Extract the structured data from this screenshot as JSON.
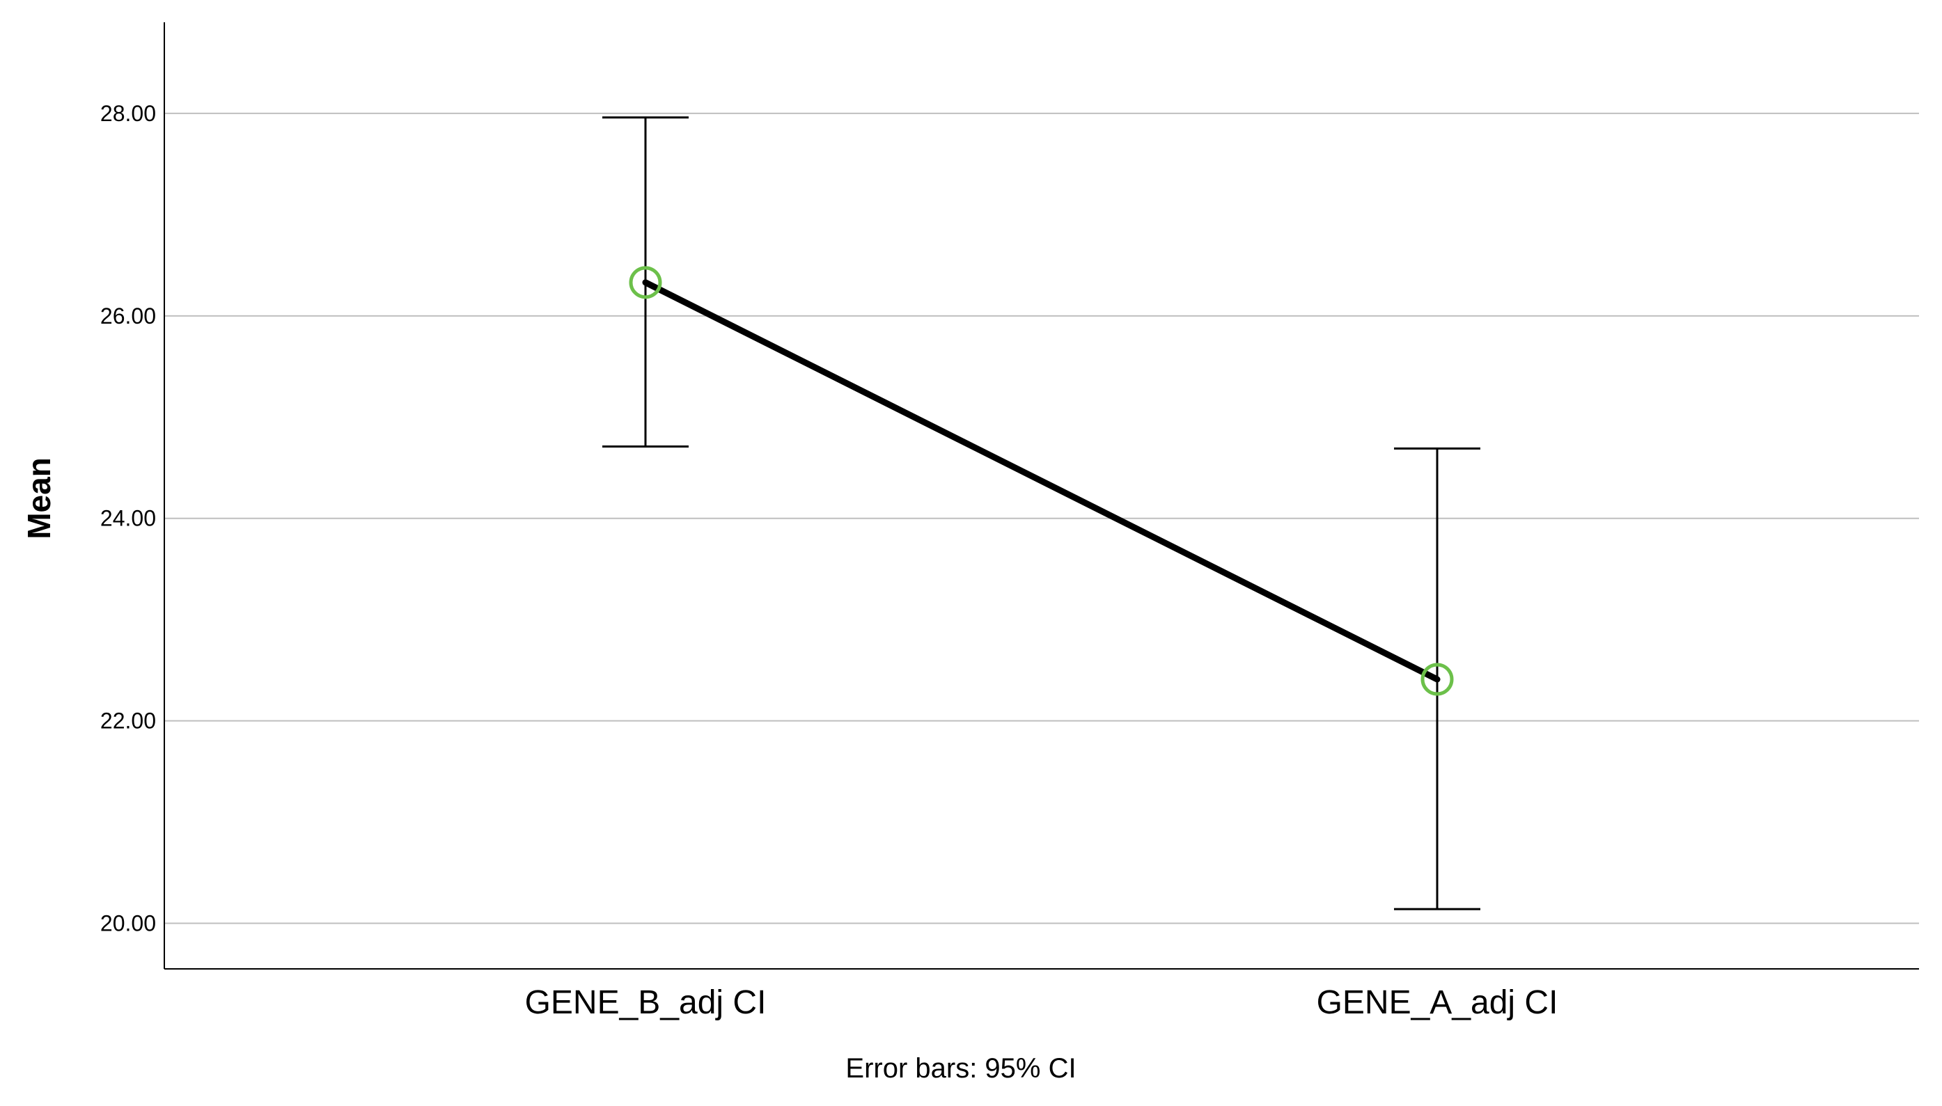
{
  "chart_data": {
    "type": "line",
    "categories": [
      "GENE_B_adj CI",
      "GENE_A_adj CI"
    ],
    "series": [
      {
        "values": [
          26.33,
          22.41
        ],
        "ci_lower": [
          24.71,
          20.14
        ],
        "ci_upper": [
          27.96,
          24.69
        ]
      }
    ],
    "ylabel": "Mean",
    "xlabel": "",
    "yticks": [
      "20.00",
      "22.00",
      "24.00",
      "26.00",
      "28.00"
    ],
    "ylim": [
      19.55,
      28.9
    ],
    "grid": true,
    "footnote": "Error bars: 95% CI",
    "colors": {
      "line": "#000000",
      "marker": "#6cc04a",
      "grid": "#bfbfbf",
      "axis": "#000000"
    }
  }
}
